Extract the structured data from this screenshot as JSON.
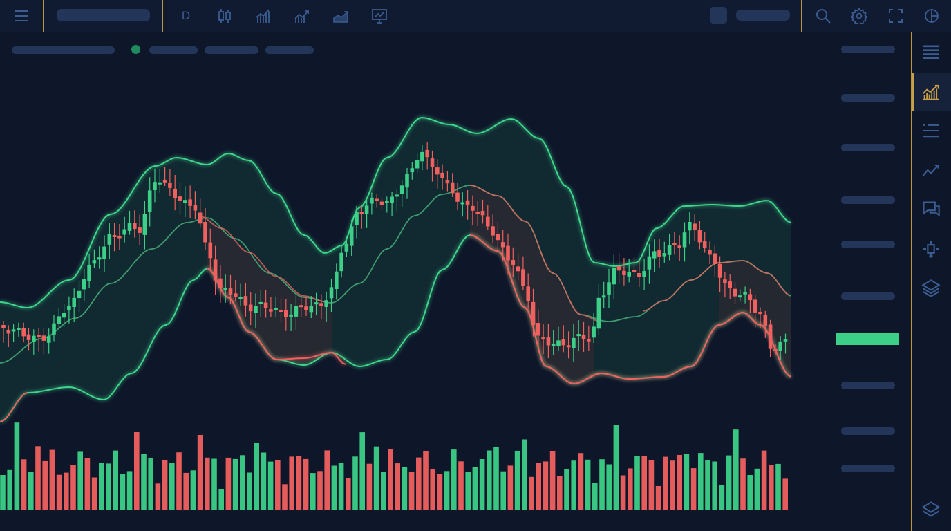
{
  "toolbar": {
    "interval": "D",
    "icons": [
      "menu-icon",
      "symbol-search-pill",
      "candlestick-icon",
      "bar-chart-icon",
      "line-chart-icon",
      "area-chart-icon",
      "indicators-icon",
      "avatar-square",
      "account-pill",
      "search-icon",
      "settings-icon",
      "fullscreen-icon",
      "snapshot-icon"
    ]
  },
  "sidebar": {
    "icons": [
      "list-icon",
      "chart-icon",
      "watchlist-icon",
      "trend-icon",
      "chat-icon",
      "data-window-icon",
      "layers-icon",
      "layers-bottom-icon"
    ],
    "active": "chart-icon"
  },
  "colors": {
    "background": "#0e1629",
    "up": "#3ccf87",
    "down": "#f0605e",
    "accent": "#b9953d",
    "placeholder": "#24355a",
    "icon": "#3b5d92"
  },
  "chart_data": {
    "type": "candlestick",
    "overlays": [
      "bollinger_bands"
    ],
    "volume": true,
    "axis_labels": "none",
    "ohlc_count": 0
  }
}
